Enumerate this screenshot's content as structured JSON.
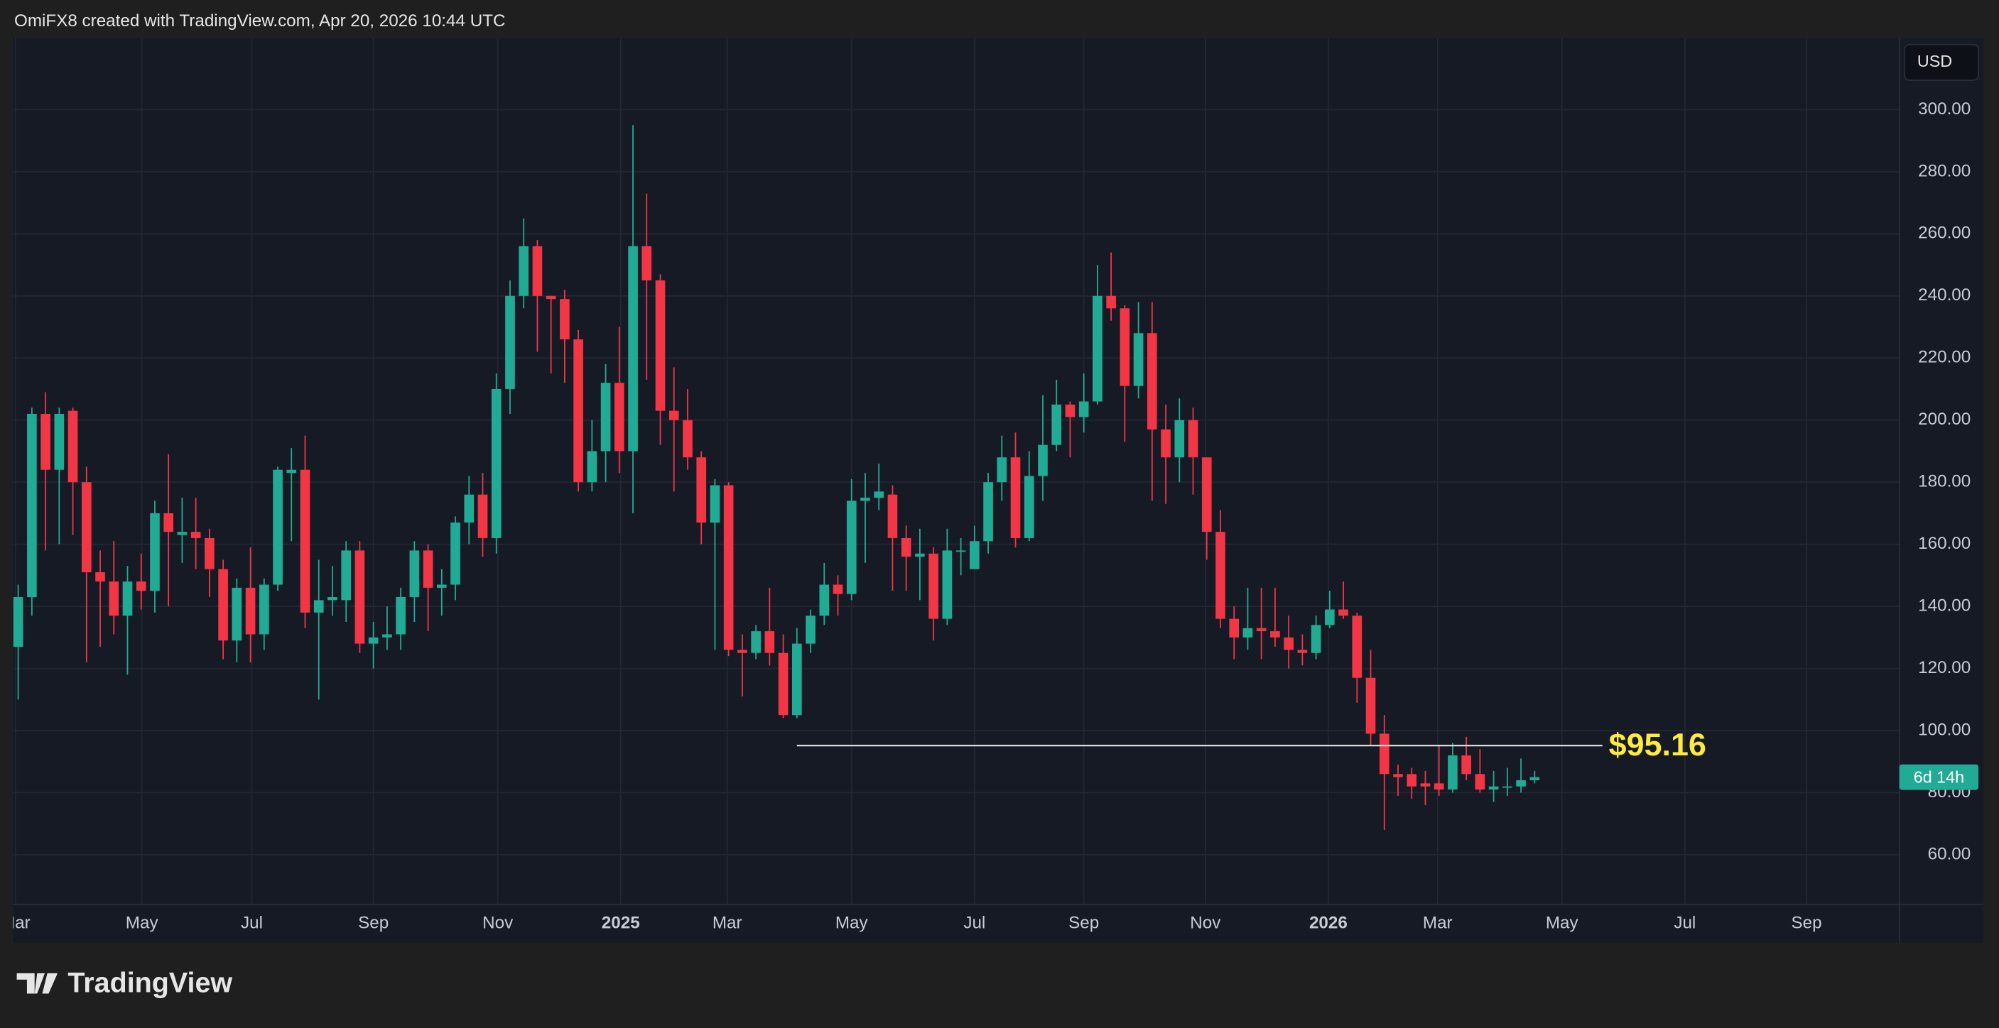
{
  "header": "OmiFX8 created with TradingView.com, Apr 20, 2026 10:44 UTC",
  "footer_logo": "TradingView",
  "chart_data": {
    "type": "candlestick",
    "currency": "USD",
    "up_color": "#22ab94",
    "down_color": "#f23645",
    "open": [
      127,
      143,
      202,
      184,
      203,
      180,
      151,
      148,
      137,
      148,
      145,
      170,
      163,
      164,
      162,
      152,
      129,
      146,
      131,
      147,
      183,
      184,
      138,
      142,
      142,
      158,
      128,
      130,
      131,
      143,
      158,
      146,
      147,
      167,
      176,
      162,
      210,
      240,
      256,
      240,
      239,
      226,
      180,
      190,
      212,
      190,
      256,
      245,
      203,
      200,
      188,
      167,
      179,
      126,
      125,
      132,
      125,
      105,
      128,
      137,
      147,
      144,
      174,
      175,
      176,
      162,
      156,
      157,
      136,
      158,
      152,
      161,
      180,
      188,
      162,
      182,
      192,
      205,
      201,
      206,
      240,
      236,
      211,
      228,
      197,
      188,
      200,
      188,
      164,
      136,
      130,
      133,
      132,
      130,
      126,
      125,
      134,
      139,
      137,
      117,
      99,
      86,
      86,
      83,
      83,
      81,
      92,
      86,
      81,
      82,
      82,
      84
    ],
    "high": [
      147,
      204,
      209,
      204,
      204,
      185,
      158,
      161,
      153,
      157,
      174,
      189,
      175,
      175,
      165,
      155,
      149,
      159,
      149,
      185,
      191,
      195,
      155,
      153,
      161,
      161,
      135,
      140,
      146,
      161,
      160,
      152,
      169,
      182,
      183,
      215,
      245,
      265,
      258,
      240,
      242,
      229,
      200,
      218,
      230,
      295,
      273,
      247,
      217,
      210,
      190,
      181,
      180,
      131,
      134,
      146,
      131,
      133,
      139,
      154,
      150,
      181,
      183,
      186,
      179,
      166,
      165,
      159,
      165,
      162,
      166,
      183,
      195,
      196,
      190,
      208,
      213,
      206,
      215,
      250,
      254,
      237,
      238,
      238,
      205,
      207,
      204,
      188,
      171,
      140,
      146,
      146,
      146,
      137,
      131,
      137,
      145,
      148,
      138,
      126,
      105,
      89,
      88,
      87,
      95,
      96,
      98,
      94,
      87,
      88,
      91,
      87
    ],
    "low": [
      110,
      137,
      158,
      160,
      163,
      122,
      127,
      131,
      118,
      139,
      138,
      140,
      154,
      152,
      143,
      123,
      122,
      122,
      126,
      145,
      161,
      133,
      110,
      137,
      135,
      125,
      120,
      126,
      126,
      135,
      132,
      137,
      142,
      160,
      156,
      157,
      202,
      236,
      222,
      215,
      212,
      177,
      177,
      180,
      183,
      170,
      213,
      192,
      177,
      184,
      160,
      126,
      124,
      111,
      123,
      121,
      104,
      104,
      125,
      134,
      137,
      142,
      154,
      171,
      145,
      145,
      142,
      129,
      134,
      150,
      152,
      157,
      174,
      159,
      161,
      174,
      190,
      188,
      196,
      205,
      232,
      193,
      207,
      174,
      173,
      180,
      176,
      155,
      133,
      123,
      126,
      123,
      127,
      120,
      121,
      123,
      133,
      136,
      109,
      95,
      68,
      79,
      78,
      76,
      79,
      80,
      84,
      80,
      77,
      79,
      80,
      83
    ],
    "close": [
      143,
      202,
      184,
      202,
      180,
      151,
      148,
      137,
      148,
      145,
      170,
      164,
      164,
      162,
      152,
      129,
      146,
      131,
      147,
      184,
      184,
      138,
      142,
      143,
      158,
      128,
      130,
      131,
      143,
      158,
      146,
      147,
      167,
      176,
      162,
      210,
      240,
      256,
      240,
      239,
      226,
      180,
      190,
      212,
      190,
      256,
      245,
      203,
      200,
      188,
      167,
      179,
      126,
      125,
      132,
      125,
      105,
      128,
      137,
      147,
      144,
      174,
      175,
      177,
      162,
      156,
      157,
      136,
      158,
      158,
      161,
      180,
      188,
      162,
      182,
      192,
      205,
      201,
      206,
      240,
      236,
      211,
      228,
      197,
      188,
      200,
      188,
      164,
      136,
      130,
      133,
      132,
      130,
      126,
      125,
      134,
      139,
      137,
      117,
      99,
      86,
      85,
      82,
      82,
      81,
      92,
      86,
      81,
      82,
      82,
      84,
      85
    ],
    "ylim": [
      44,
      323
    ],
    "yticks": [
      {
        "value": 60,
        "label": "60.00"
      },
      {
        "value": 80,
        "label": "80.00"
      },
      {
        "value": 100,
        "label": "100.00"
      },
      {
        "value": 120,
        "label": "120.00"
      },
      {
        "value": 140,
        "label": "140.00"
      },
      {
        "value": 160,
        "label": "160.00"
      },
      {
        "value": 180,
        "label": "180.00"
      },
      {
        "value": 200,
        "label": "200.00"
      },
      {
        "value": 220,
        "label": "220.00"
      },
      {
        "value": 240,
        "label": "240.00"
      },
      {
        "value": 260,
        "label": "260.00"
      },
      {
        "value": 280,
        "label": "280.00"
      },
      {
        "value": 300,
        "label": "300.00"
      }
    ],
    "xlim": [
      -0.2,
      137.7
    ],
    "xticks": [
      {
        "value": -0.2,
        "label": "Mar"
      },
      {
        "value": 9.05,
        "label": "May"
      },
      {
        "value": 17.1,
        "label": "Jul"
      },
      {
        "value": 26.0,
        "label": "Sep"
      },
      {
        "value": 35.1,
        "label": "Nov"
      },
      {
        "value": 44.1,
        "label": "2025"
      },
      {
        "value": 51.9,
        "label": "Mar"
      },
      {
        "value": 61.0,
        "label": "May"
      },
      {
        "value": 70.0,
        "label": "Jul"
      },
      {
        "value": 78.0,
        "label": "Sep"
      },
      {
        "value": 86.9,
        "label": "Nov"
      },
      {
        "value": 95.9,
        "label": "2026"
      },
      {
        "value": 103.9,
        "label": "Mar"
      },
      {
        "value": 113.0,
        "label": "May"
      },
      {
        "value": 122.0,
        "label": "Jul"
      },
      {
        "value": 130.9,
        "label": "Sep"
      }
    ],
    "grid": true,
    "level": {
      "value": 95.16,
      "label": "$95.16",
      "color": "#ffeb3b"
    },
    "countdown_label": "6d 14h"
  }
}
